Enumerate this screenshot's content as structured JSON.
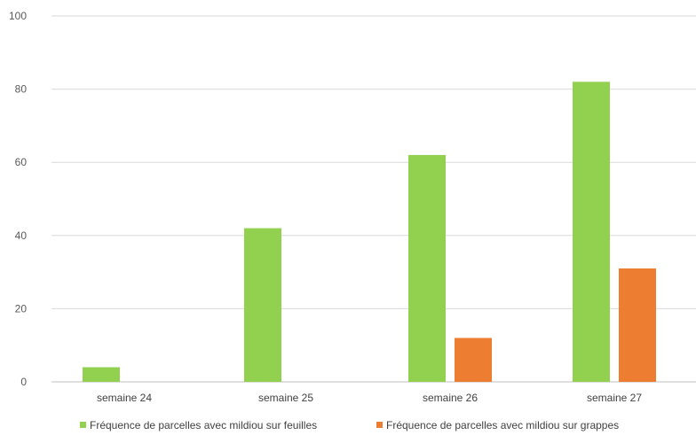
{
  "chart_data": {
    "type": "bar",
    "categories": [
      "semaine 24",
      "semaine 25",
      "semaine 26",
      "semaine 27"
    ],
    "series": [
      {
        "name": "Fréquence de parcelles avec mildiou sur feuilles",
        "values": [
          4,
          42,
          62,
          82
        ],
        "color": "#92d050"
      },
      {
        "name": "Fréquence de parcelles avec mildiou sur grappes",
        "values": [
          0,
          0,
          12,
          31
        ],
        "color": "#ed7d31"
      }
    ],
    "title": "",
    "xlabel": "",
    "ylabel": "",
    "ylim": [
      0,
      100
    ],
    "yticks": [
      "0",
      "20",
      "40",
      "60",
      "80",
      "100"
    ],
    "grid": true,
    "legend_position": "bottom"
  }
}
